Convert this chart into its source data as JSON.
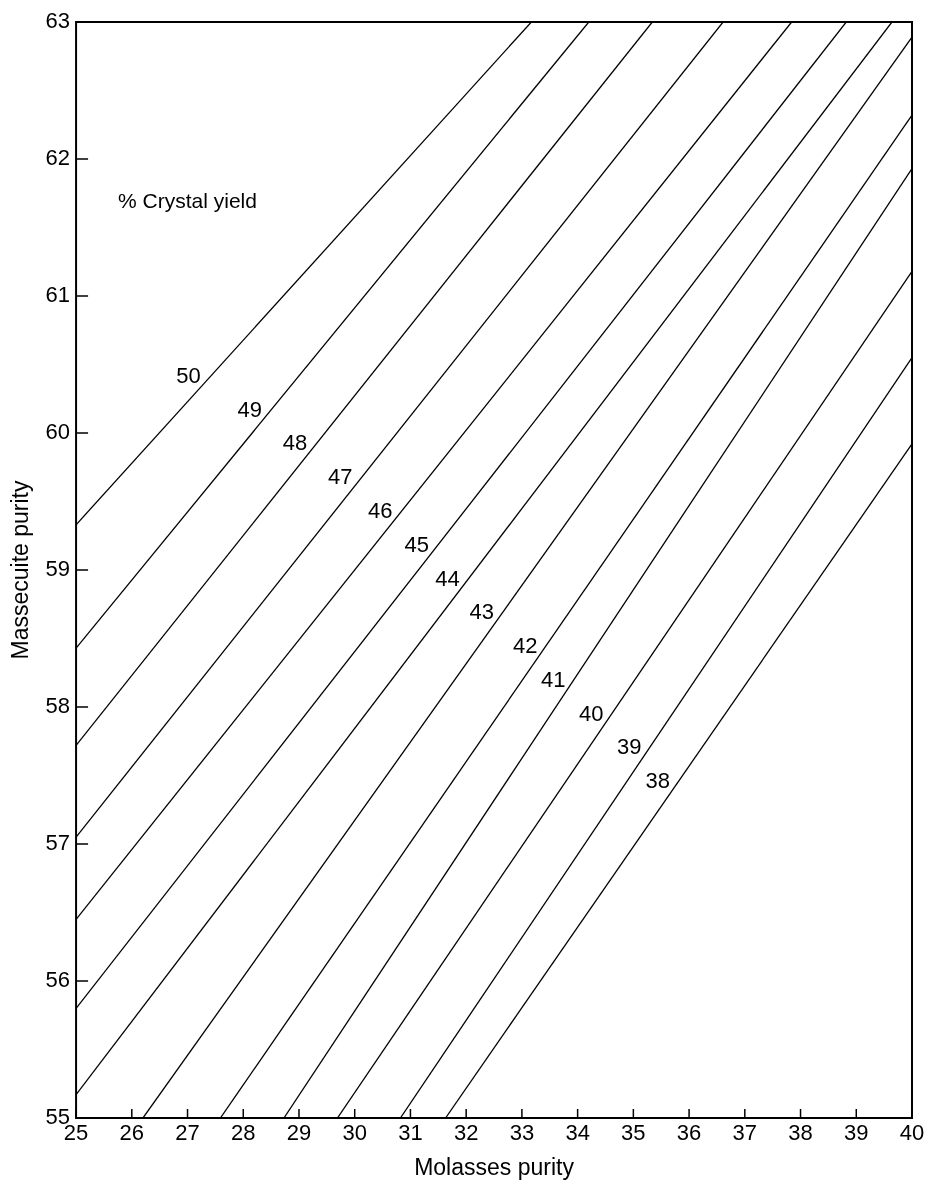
{
  "chart_data": {
    "type": "line",
    "xlabel": "Molasses purity",
    "ylabel": "Massecuite purity",
    "annotations": [
      "% Crystal yield"
    ],
    "xlim": [
      25,
      40
    ],
    "xticks": [
      25,
      26,
      27,
      28,
      29,
      30,
      31,
      32,
      33,
      34,
      35,
      36,
      37,
      38,
      39,
      40
    ],
    "ylim": [
      55,
      63
    ],
    "yticks": [
      55,
      56,
      57,
      58,
      59,
      60,
      61,
      62,
      63
    ],
    "grid": false,
    "legend": false,
    "marker": "none",
    "line_style": "solid",
    "series": [
      {
        "name": "50",
        "color": "#000000",
        "x": [
          25,
          33.17
        ],
        "values": [
          59.33,
          63
        ]
      },
      {
        "name": "49",
        "color": "#000000",
        "x": [
          25,
          34.2
        ],
        "values": [
          58.43,
          63
        ]
      },
      {
        "name": "48",
        "color": "#000000",
        "x": [
          25,
          35.34
        ],
        "values": [
          57.72,
          63
        ]
      },
      {
        "name": "47",
        "color": "#000000",
        "x": [
          25,
          36.61
        ],
        "values": [
          57.05,
          63
        ]
      },
      {
        "name": "46",
        "color": "#000000",
        "x": [
          25,
          37.84
        ],
        "values": [
          56.45,
          63
        ]
      },
      {
        "name": "45",
        "color": "#000000",
        "x": [
          25,
          38.82
        ],
        "values": [
          55.8,
          63
        ]
      },
      {
        "name": "44",
        "color": "#000000",
        "x": [
          25,
          39.64
        ],
        "values": [
          55.17,
          63
        ]
      },
      {
        "name": "43",
        "color": "#000000",
        "x": [
          26.2,
          40
        ],
        "values": [
          55,
          62.89
        ]
      },
      {
        "name": "42",
        "color": "#000000",
        "x": [
          27.59,
          40
        ],
        "values": [
          55,
          62.32
        ]
      },
      {
        "name": "41",
        "color": "#000000",
        "x": [
          28.73,
          40
        ],
        "values": [
          55,
          61.93
        ]
      },
      {
        "name": "40",
        "color": "#000000",
        "x": [
          29.69,
          40
        ],
        "values": [
          55,
          61.18
        ]
      },
      {
        "name": "39",
        "color": "#000000",
        "x": [
          30.82,
          40
        ],
        "values": [
          55,
          60.55
        ]
      },
      {
        "name": "38",
        "color": "#000000",
        "x": [
          31.63,
          40
        ],
        "values": [
          55,
          59.92
        ]
      }
    ]
  }
}
